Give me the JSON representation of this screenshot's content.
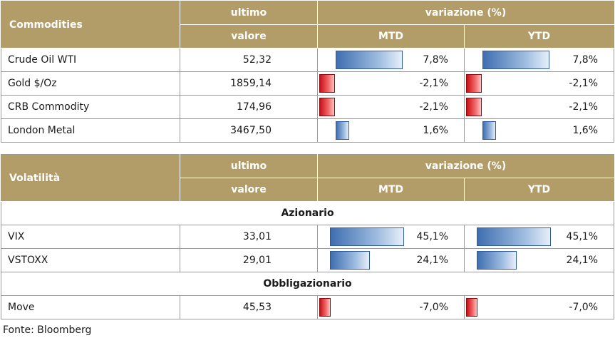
{
  "commodities": {
    "title": "Commodities",
    "col_last_1": "ultimo",
    "col_last_2": "valore",
    "col_var": "variazione (%)",
    "col_mtd": "MTD",
    "col_ytd": "YTD",
    "rows": [
      {
        "name": "Crude Oil WTI",
        "value": "52,32",
        "mtd": "7,8%",
        "ytd": "7,8%",
        "mtd_num": 7.8,
        "ytd_num": 7.8
      },
      {
        "name": "Gold $/Oz",
        "value": "1859,14",
        "mtd": "-2,1%",
        "ytd": "-2,1%",
        "mtd_num": -2.1,
        "ytd_num": -2.1
      },
      {
        "name": "CRB Commodity",
        "value": "174,96",
        "mtd": "-2,1%",
        "ytd": "-2,1%",
        "mtd_num": -2.1,
        "ytd_num": -2.1
      },
      {
        "name": "London Metal",
        "value": "3467,50",
        "mtd": "1,6%",
        "ytd": "1,6%",
        "mtd_num": 1.6,
        "ytd_num": 1.6
      }
    ]
  },
  "volatility": {
    "title": "Volatilità",
    "col_last_1": "ultimo",
    "col_last_2": "valore",
    "col_var": "variazione (%)",
    "col_mtd": "MTD",
    "col_ytd": "YTD",
    "section_equity": "Azionario",
    "section_bond": "Obbligazionario",
    "equity_rows": [
      {
        "name": "VIX",
        "value": "33,01",
        "mtd": "45,1%",
        "ytd": "45,1%",
        "mtd_num": 45.1,
        "ytd_num": 45.1
      },
      {
        "name": "VSTOXX",
        "value": "29,01",
        "mtd": "24,1%",
        "ytd": "24,1%",
        "mtd_num": 24.1,
        "ytd_num": 24.1
      }
    ],
    "bond_rows": [
      {
        "name": "Move",
        "value": "45,53",
        "mtd": "-7,0%",
        "ytd": "-7,0%",
        "mtd_num": -7.0,
        "ytd_num": -7.0
      }
    ]
  },
  "source": "Fonte: Bloomberg",
  "colors": {
    "header": "#b29c67",
    "positive_bar": "#3f6eb0",
    "negative_bar": "#c90f15"
  }
}
